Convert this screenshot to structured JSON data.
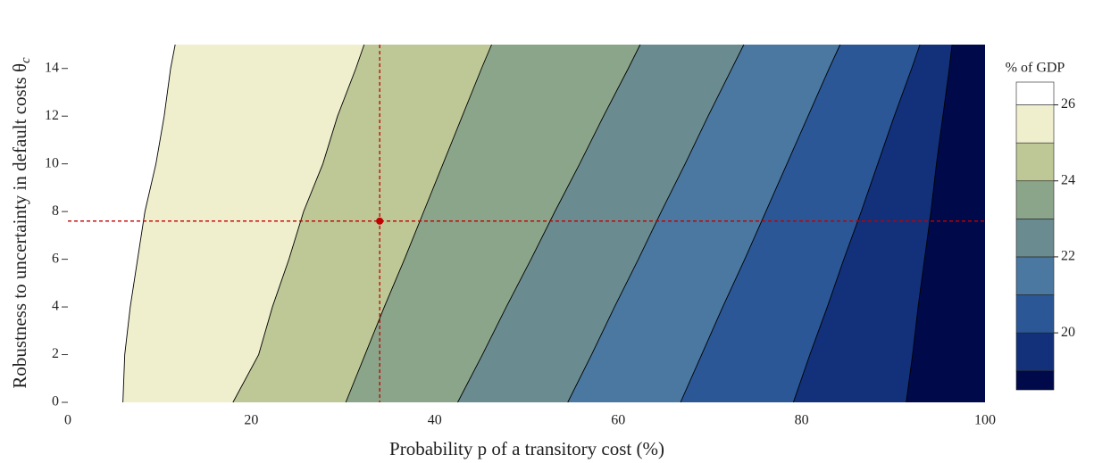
{
  "chart_data": {
    "type": "contour",
    "x_label": "Probability p of a transitory cost (%)",
    "y_label": "Robustness to uncertainty in default costs θ",
    "y_label_sub": "c",
    "xlim": [
      0,
      100
    ],
    "ylim": [
      0,
      15
    ],
    "xticks": [
      0,
      20,
      40,
      60,
      80,
      100
    ],
    "yticks": [
      0,
      2,
      4,
      6,
      8,
      10,
      12,
      14
    ],
    "levels": [
      19,
      20,
      21,
      22,
      23,
      24,
      25,
      26
    ],
    "level_colors": [
      "#000a4a",
      "#13307a",
      "#2b5797",
      "#4a78a0",
      "#6a8c91",
      "#8ba58a",
      "#bdc896",
      "#efeecd",
      "#ffffff"
    ],
    "contour_y": [
      0,
      2,
      4,
      6,
      8,
      10,
      12,
      14,
      15
    ],
    "contours": [
      [
        91.4,
        92.1,
        92.7,
        93.4,
        94.1,
        94.7,
        95.4,
        96.1,
        96.4
      ],
      [
        79.1,
        80.9,
        82.8,
        84.6,
        86.5,
        88.3,
        90.1,
        92.0,
        92.9
      ],
      [
        66.8,
        69.1,
        71.4,
        73.8,
        76.1,
        78.4,
        80.7,
        83.0,
        84.2
      ],
      [
        54.5,
        57.1,
        59.6,
        62.2,
        64.7,
        67.3,
        69.8,
        72.4,
        73.7
      ],
      [
        42.5,
        45.2,
        47.8,
        50.5,
        53.1,
        55.8,
        58.4,
        61.1,
        62.4
      ],
      [
        30.3,
        32.4,
        34.5,
        36.7,
        38.8,
        40.9,
        43.0,
        45.1,
        46.2
      ],
      [
        18,
        20.8,
        22.3,
        24.1,
        25.7,
        27.8,
        29.4,
        31.4,
        32.3
      ],
      [
        6,
        6.2,
        6.8,
        7.6,
        8.4,
        9.6,
        10.5,
        11.2,
        11.7
      ]
    ],
    "colorbar": {
      "label": "% of GDP",
      "lim": [
        18.5,
        26.6
      ],
      "ticks": [
        20,
        22,
        24,
        26
      ]
    },
    "reference": {
      "x": 34,
      "y": 7.6,
      "color": "#c00000"
    }
  }
}
